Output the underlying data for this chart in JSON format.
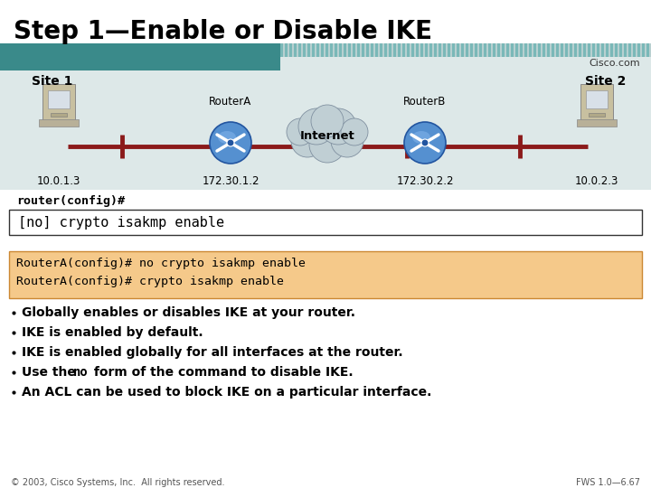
{
  "title": "Step 1—Enable or Disable IKE",
  "title_fontsize": 20,
  "title_color": "#000000",
  "bg_color": "#ffffff",
  "cisco_text": "Cisco.com",
  "site1_label": "Site 1",
  "site2_label": "Site 2",
  "routerA_label": "RouterA",
  "routerB_label": "RouterB",
  "internet_label": "Internet",
  "ip_site1": "10.0.1.3",
  "ip_routerA": "172.30.1.2",
  "ip_routerB": "172.30.2.2",
  "ip_site2": "10.0.2.3",
  "prompt_label": "router(config)#",
  "command_box_text": "[no] crypto isakmp enable",
  "example_box_color": "#f5c98a",
  "example_line1": "RouterA(config)# no crypto isakmp enable",
  "example_line2": "RouterA(config)# crypto isakmp enable",
  "bullets": [
    "Globally enables or disables IKE at your router.",
    "IKE is enabled by default.",
    "IKE is enabled globally for all interfaces at the router.",
    "Use the no form of the command to disable IKE.",
    "An ACL can be used to block IKE on a particular interface."
  ],
  "footer_left": "© 2003, Cisco Systems, Inc.  All rights reserved.",
  "footer_right": "FWS 1.0—6.67",
  "line_color": "#8b1a1a",
  "teal_color": "#3a8a8a",
  "teal_light": "#7ab8b8",
  "diagram_bg": "#dde8e8"
}
